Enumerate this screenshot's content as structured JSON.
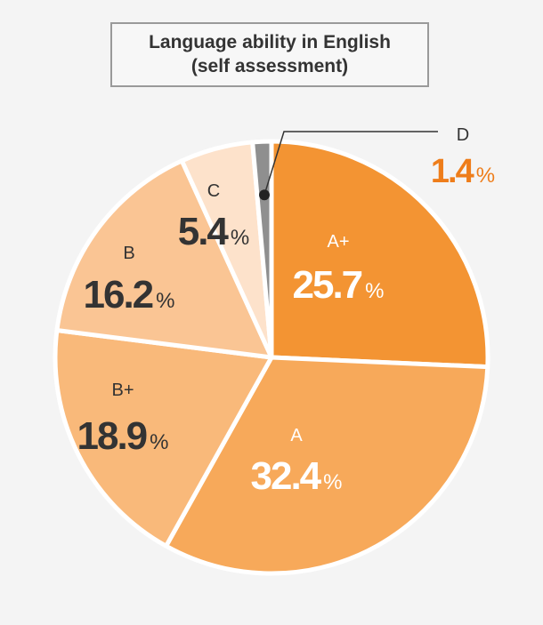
{
  "chart_data": {
    "type": "pie",
    "title_line1": "Language ability in English",
    "title_line2": "(self assessment)",
    "unit": "%",
    "slices": [
      {
        "label": "A+",
        "value": 25.7,
        "color": "#f39433",
        "label_color": "#ffffff"
      },
      {
        "label": "A",
        "value": 32.4,
        "color": "#f7a95a",
        "label_color": "#ffffff"
      },
      {
        "label": "B+",
        "value": 18.9,
        "color": "#f9b97a",
        "label_color": "#333333"
      },
      {
        "label": "B",
        "value": 16.2,
        "color": "#fac594",
        "label_color": "#333333"
      },
      {
        "label": "C",
        "value": 5.4,
        "color": "#fde2cb",
        "label_color": "#333333"
      },
      {
        "label": "D",
        "value": 1.4,
        "color": "#8f8f8f",
        "label_color": "#333333",
        "value_color": "#ee7d1a"
      }
    ]
  }
}
